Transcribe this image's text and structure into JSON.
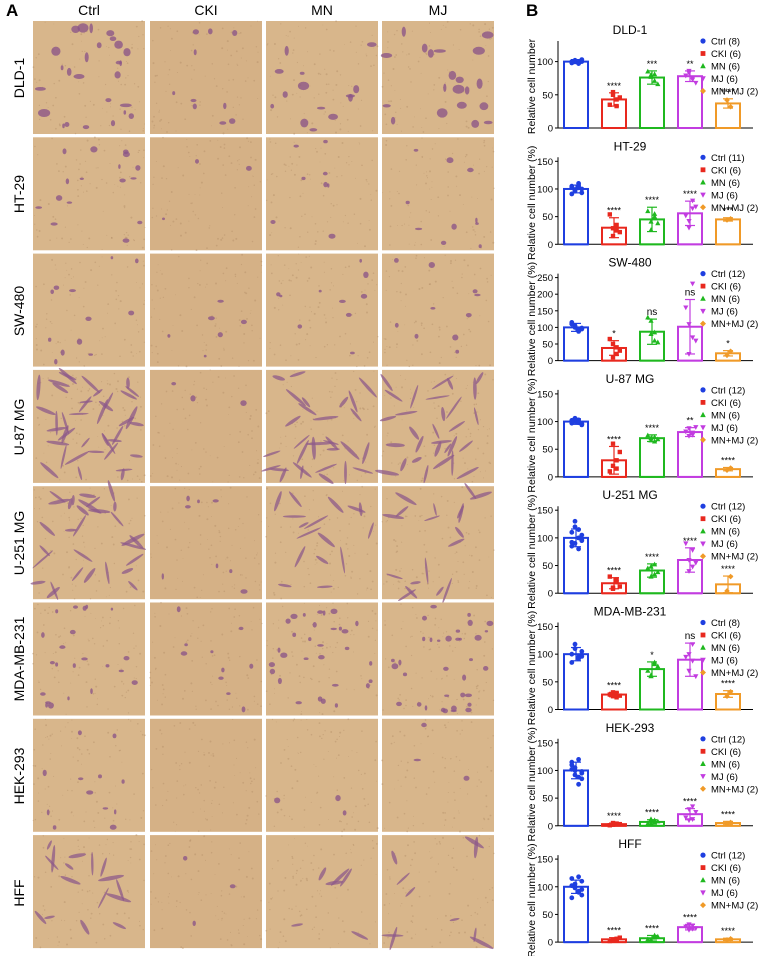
{
  "panel_a": {
    "letter": "A",
    "columns": [
      "Ctrl",
      "CKI",
      "MN",
      "MJ"
    ],
    "rows": [
      "DLD-1",
      "HT-29",
      "SW-480",
      "U-87 MG",
      "U-251 MG",
      "MDA-MB-231",
      "HEK-293",
      "HFF"
    ]
  },
  "panel_b": {
    "letter": "B",
    "colors": {
      "Ctrl": "#1f3fe0",
      "CKI": "#e8281e",
      "MN": "#1fb81f",
      "MJ": "#c23ce0",
      "MN+MJ": "#f09a28"
    }
  },
  "chart_data": [
    {
      "type": "bar",
      "title": "DLD-1",
      "ylabel": "Relative cell number",
      "ylim": [
        0,
        125
      ],
      "yticks": [
        0,
        50,
        100
      ],
      "categories": [
        "Ctrl",
        "CKI",
        "MN",
        "MJ",
        "MN+MJ"
      ],
      "values": [
        100,
        43,
        76,
        78,
        37
      ],
      "errors": [
        3,
        10,
        10,
        8,
        7
      ],
      "points": [
        [
          101,
          99,
          98,
          100,
          102,
          97,
          100,
          103
        ],
        [
          54,
          43,
          35,
          46,
          50,
          33
        ],
        [
          80,
          71,
          85,
          66,
          77,
          81
        ],
        [
          86,
          73,
          79,
          68,
          83,
          76
        ],
        [
          42,
          32
        ]
      ],
      "significance": [
        "",
        "****",
        "***",
        "**",
        "****"
      ],
      "legend": [
        "Ctrl (8)",
        "CKI (6)",
        "MN (6)",
        "MJ (6)",
        "MN+MJ (2)"
      ]
    },
    {
      "type": "bar",
      "title": "HT-29",
      "ylabel": "Relative cell number (%)",
      "ylim": [
        0,
        150
      ],
      "yticks": [
        0,
        50,
        100,
        150
      ],
      "categories": [
        "Ctrl",
        "CKI",
        "MN",
        "MJ",
        "MN+MJ"
      ],
      "values": [
        100,
        30,
        45,
        56,
        45
      ],
      "errors": [
        7,
        18,
        22,
        22,
        3
      ],
      "points": [
        [
          96,
          102,
          105,
          93,
          99,
          110,
          91,
          100,
          97,
          104,
          103
        ],
        [
          15,
          35,
          54,
          22,
          29,
          25
        ],
        [
          26,
          50,
          60,
          38,
          41,
          55
        ],
        [
          30,
          79,
          52,
          68,
          42,
          65
        ],
        [
          44,
          46
        ]
      ],
      "significance": [
        "",
        "****",
        "****",
        "****",
        "***"
      ],
      "legend": [
        "Ctrl (11)",
        "CKI (6)",
        "MN (6)",
        "MJ (6)",
        "MN+MJ (2)"
      ]
    },
    {
      "type": "bar",
      "title": "SW-480",
      "ylabel": "Relative cell number (%)",
      "ylim": [
        0,
        250
      ],
      "yticks": [
        0,
        50,
        100,
        150,
        200,
        250
      ],
      "categories": [
        "Ctrl",
        "CKI",
        "MN",
        "MJ",
        "MN+MJ"
      ],
      "values": [
        100,
        38,
        87,
        102,
        22
      ],
      "errors": [
        12,
        22,
        38,
        82,
        8
      ],
      "points": [
        [
          100,
          88,
          115,
          95,
          105,
          92,
          110,
          98,
          102,
          90,
          112,
          96
        ],
        [
          10,
          40,
          65,
          30,
          50,
          20
        ],
        [
          120,
          60,
          130,
          55,
          80,
          85
        ],
        [
          20,
          232,
          160,
          60,
          110,
          70
        ],
        [
          16,
          28
        ]
      ],
      "significance": [
        "",
        "*",
        "ns",
        "ns",
        "*"
      ],
      "legend": [
        "Ctrl (12)",
        "CKI (6)",
        "MN (6)",
        "MJ (6)",
        "MN+MJ (2)"
      ]
    },
    {
      "type": "bar",
      "title": "U-87 MG",
      "ylabel": "Relative cell number (%)",
      "ylim": [
        0,
        150
      ],
      "yticks": [
        0,
        50,
        100,
        150
      ],
      "categories": [
        "Ctrl",
        "CKI",
        "MN",
        "MJ",
        "MN+MJ"
      ],
      "values": [
        100,
        30,
        70,
        81,
        14
      ],
      "errors": [
        5,
        25,
        6,
        8,
        3
      ],
      "points": [
        [
          100,
          103,
          97,
          95,
          106,
          99,
          102,
          96,
          104,
          98,
          101,
          94
        ],
        [
          60,
          30,
          10,
          45,
          20,
          15
        ],
        [
          66,
          72,
          75,
          68,
          70,
          64
        ],
        [
          88,
          76,
          82,
          90,
          74,
          80
        ],
        [
          12,
          16
        ]
      ],
      "significance": [
        "",
        "****",
        "****",
        "**",
        "****"
      ],
      "legend": [
        "Ctrl (12)",
        "CKI (6)",
        "MN (6)",
        "MJ (6)",
        "MN+MJ (2)"
      ]
    },
    {
      "type": "bar",
      "title": "U-251 MG",
      "ylabel": "Relative cell number (%)",
      "ylim": [
        0,
        150
      ],
      "yticks": [
        0,
        50,
        100,
        150
      ],
      "categories": [
        "Ctrl",
        "CKI",
        "MN",
        "MJ",
        "MN+MJ"
      ],
      "values": [
        100,
        18,
        41,
        60,
        16
      ],
      "errors": [
        16,
        10,
        12,
        22,
        15
      ],
      "points": [
        [
          120,
          80,
          110,
          95,
          130,
          100,
          85,
          105,
          90,
          115,
          92,
          98
        ],
        [
          10,
          25,
          30,
          12,
          8,
          20
        ],
        [
          30,
          52,
          45,
          38,
          48,
          34
        ],
        [
          40,
          78,
          90,
          55,
          60,
          48
        ],
        [
          4,
          30
        ]
      ],
      "significance": [
        "",
        "****",
        "****",
        "****",
        "****"
      ],
      "legend": [
        "Ctrl (12)",
        "CKI (6)",
        "MN (6)",
        "MJ (6)",
        "MN+MJ (2)"
      ]
    },
    {
      "type": "bar",
      "title": "MDA-MB-231",
      "ylabel": "Relative cell number (%)",
      "ylim": [
        0,
        150
      ],
      "yticks": [
        0,
        50,
        100,
        150
      ],
      "categories": [
        "Ctrl",
        "CKI",
        "MN",
        "MJ",
        "MN+MJ"
      ],
      "values": [
        100,
        27,
        73,
        90,
        28
      ],
      "errors": [
        12,
        4,
        13,
        30,
        6
      ],
      "points": [
        [
          110,
          95,
          85,
          105,
          118,
          92,
          100,
          96
        ],
        [
          24,
          30,
          27,
          25,
          31,
          22
        ],
        [
          60,
          85,
          70,
          78,
          62,
          82
        ],
        [
          70,
          118,
          95,
          60,
          100,
          88
        ],
        [
          24,
          32
        ]
      ],
      "significance": [
        "",
        "****",
        "*",
        "ns",
        "****"
      ],
      "legend": [
        "Ctrl (8)",
        "CKI (6)",
        "MN (6)",
        "MJ (6)",
        "MN+MJ (2)"
      ]
    },
    {
      "type": "bar",
      "title": "HEK-293",
      "ylabel": "Relative cell number (%)",
      "ylim": [
        0,
        150
      ],
      "yticks": [
        0,
        50,
        100,
        150
      ],
      "categories": [
        "Ctrl",
        "CKI",
        "MN",
        "MJ",
        "MN+MJ"
      ],
      "values": [
        100,
        3,
        7,
        21,
        5
      ],
      "errors": [
        15,
        2,
        4,
        10,
        3
      ],
      "points": [
        [
          100,
          88,
          115,
          95,
          105,
          75,
          110,
          98,
          92,
          120,
          102,
          85
        ],
        [
          2,
          4,
          1,
          3,
          5,
          3
        ],
        [
          5,
          10,
          4,
          8,
          12,
          6
        ],
        [
          10,
          35,
          15,
          25,
          30,
          12
        ],
        [
          4,
          6
        ]
      ],
      "significance": [
        "",
        "****",
        "****",
        "****",
        "****"
      ],
      "legend": [
        "Ctrl (12)",
        "CKI (6)",
        "MN (6)",
        "MJ (6)",
        "MN+MJ (2)"
      ]
    },
    {
      "type": "bar",
      "title": "HFF",
      "ylabel": "Relative cell number (%)",
      "ylim": [
        0,
        150
      ],
      "yticks": [
        0,
        50,
        100,
        150
      ],
      "categories": [
        "Ctrl",
        "CKI",
        "MN",
        "MJ",
        "MN+MJ"
      ],
      "values": [
        100,
        5,
        7,
        27,
        5
      ],
      "errors": [
        12,
        3,
        5,
        5,
        2
      ],
      "points": [
        [
          100,
          90,
          115,
          95,
          105,
          118,
          80,
          110,
          98,
          92,
          102,
          85
        ],
        [
          3,
          6,
          2,
          8,
          4,
          5
        ],
        [
          4,
          12,
          5,
          10,
          3,
          8
        ],
        [
          22,
          30,
          28,
          25,
          32,
          24
        ],
        [
          4,
          6
        ]
      ],
      "significance": [
        "",
        "****",
        "****",
        "****",
        "****"
      ],
      "legend": [
        "Ctrl (12)",
        "CKI (6)",
        "MN (6)",
        "MJ (6)",
        "MN+MJ (2)"
      ]
    }
  ]
}
